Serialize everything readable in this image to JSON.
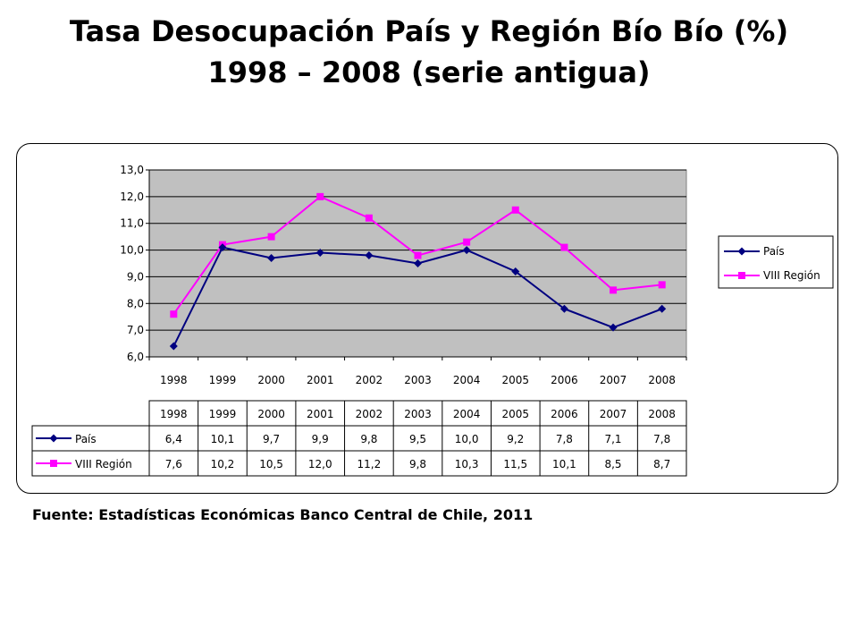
{
  "slide": {
    "title_line1": "Tasa Desocupación País y Región Bío Bío (%)",
    "title_line2": "1998 – 2008 (serie antigua)",
    "source": "Fuente: Estadísticas Económicas Banco Central de Chile, 2011"
  },
  "chart_data": {
    "type": "line",
    "categories": [
      "1998",
      "1999",
      "2000",
      "2001",
      "2002",
      "2003",
      "2004",
      "2005",
      "2006",
      "2007",
      "2008"
    ],
    "ylim": [
      6.0,
      13.0
    ],
    "y_ticks": [
      "6,0",
      "7,0",
      "8,0",
      "9,0",
      "10,0",
      "11,0",
      "12,0",
      "13,0"
    ],
    "grid": true,
    "legend_position": "right",
    "series": [
      {
        "name": "País",
        "values": [
          6.4,
          10.1,
          9.7,
          9.9,
          9.8,
          9.5,
          10.0,
          9.2,
          7.8,
          7.1,
          7.8
        ],
        "color": "#000080",
        "marker": "diamond",
        "table_values": [
          "6,4",
          "10,1",
          "9,7",
          "9,9",
          "9,8",
          "9,5",
          "10,0",
          "9,2",
          "7,8",
          "7,1",
          "7,8"
        ]
      },
      {
        "name": "VIII Región",
        "values": [
          7.6,
          10.2,
          10.5,
          12.0,
          11.2,
          9.8,
          10.3,
          11.5,
          10.1,
          8.5,
          8.7
        ],
        "color": "#ff00ff",
        "marker": "square",
        "table_values": [
          "7,6",
          "10,2",
          "10,5",
          "12,0",
          "11,2",
          "9,8",
          "10,3",
          "11,5",
          "10,1",
          "8,5",
          "8,7"
        ]
      }
    ],
    "plot_background": "#c0c0c0"
  }
}
